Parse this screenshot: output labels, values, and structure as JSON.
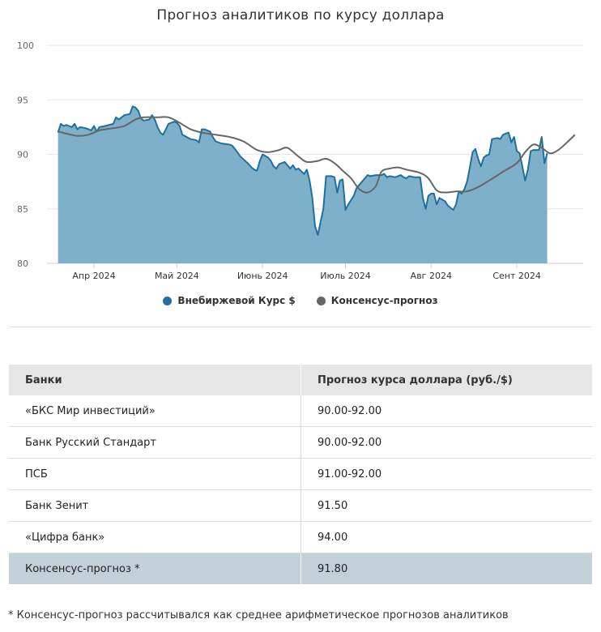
{
  "title": "Прогноз аналитиков по курсу доллара",
  "chart_data": {
    "type": "area",
    "ylim": [
      80,
      100
    ],
    "y_ticks": [
      "100",
      "95",
      "90",
      "85",
      "80"
    ],
    "x_range": [
      "2024-03-15",
      "2024-09-25"
    ],
    "x_ticks": [
      {
        "date": "2024-04-01",
        "label": "Апр 2024"
      },
      {
        "date": "2024-05-01",
        "label": "Май 2024"
      },
      {
        "date": "2024-06-01",
        "label": "Июнь 2024"
      },
      {
        "date": "2024-07-01",
        "label": "Июль 2024"
      },
      {
        "date": "2024-08-01",
        "label": "Авг 2024"
      },
      {
        "date": "2024-09-01",
        "label": "Сент 2024"
      }
    ],
    "grid": true,
    "legend_position": "bottom",
    "series": [
      {
        "name": "Внебиржевой Курс $",
        "color": "#1f6f9f",
        "fill": "#7fb0c9",
        "points": [
          [
            "2024-03-19",
            92.0
          ],
          [
            "2024-03-20",
            92.8
          ],
          [
            "2024-03-21",
            92.6
          ],
          [
            "2024-03-22",
            92.7
          ],
          [
            "2024-03-24",
            92.5
          ],
          [
            "2024-03-25",
            92.8
          ],
          [
            "2024-03-26",
            92.3
          ],
          [
            "2024-03-27",
            92.5
          ],
          [
            "2024-03-29",
            92.4
          ],
          [
            "2024-03-31",
            92.2
          ],
          [
            "2024-04-01",
            92.6
          ],
          [
            "2024-04-02",
            92.1
          ],
          [
            "2024-04-03",
            92.5
          ],
          [
            "2024-04-05",
            92.6
          ],
          [
            "2024-04-08",
            92.8
          ],
          [
            "2024-04-09",
            93.4
          ],
          [
            "2024-04-10",
            93.2
          ],
          [
            "2024-04-12",
            93.6
          ],
          [
            "2024-04-14",
            93.7
          ],
          [
            "2024-04-15",
            94.4
          ],
          [
            "2024-04-16",
            94.3
          ],
          [
            "2024-04-17",
            94.0
          ],
          [
            "2024-04-18",
            93.3
          ],
          [
            "2024-04-19",
            93.1
          ],
          [
            "2024-04-21",
            93.2
          ],
          [
            "2024-04-22",
            93.6
          ],
          [
            "2024-04-23",
            93.2
          ],
          [
            "2024-04-24",
            92.5
          ],
          [
            "2024-04-25",
            92.0
          ],
          [
            "2024-04-26",
            91.8
          ],
          [
            "2024-04-28",
            92.8
          ],
          [
            "2024-04-29",
            92.9
          ],
          [
            "2024-04-30",
            93.0
          ],
          [
            "2024-05-01",
            92.9
          ],
          [
            "2024-05-02",
            92.6
          ],
          [
            "2024-05-03",
            91.8
          ],
          [
            "2024-05-06",
            91.4
          ],
          [
            "2024-05-08",
            91.3
          ],
          [
            "2024-05-09",
            91.1
          ],
          [
            "2024-05-10",
            92.3
          ],
          [
            "2024-05-11",
            92.3
          ],
          [
            "2024-05-13",
            92.1
          ],
          [
            "2024-05-14",
            91.6
          ],
          [
            "2024-05-15",
            91.2
          ],
          [
            "2024-05-17",
            91.0
          ],
          [
            "2024-05-20",
            90.9
          ],
          [
            "2024-05-21",
            90.8
          ],
          [
            "2024-05-22",
            90.5
          ],
          [
            "2024-05-24",
            89.8
          ],
          [
            "2024-05-27",
            89.1
          ],
          [
            "2024-05-28",
            88.8
          ],
          [
            "2024-05-29",
            88.6
          ],
          [
            "2024-05-30",
            88.5
          ],
          [
            "2024-05-31",
            89.4
          ],
          [
            "2024-06-01",
            90.0
          ],
          [
            "2024-06-03",
            89.7
          ],
          [
            "2024-06-04",
            89.4
          ],
          [
            "2024-06-05",
            88.9
          ],
          [
            "2024-06-06",
            88.7
          ],
          [
            "2024-06-07",
            89.1
          ],
          [
            "2024-06-09",
            89.3
          ],
          [
            "2024-06-10",
            89.0
          ],
          [
            "2024-06-11",
            88.7
          ],
          [
            "2024-06-12",
            89.0
          ],
          [
            "2024-06-13",
            88.6
          ],
          [
            "2024-06-14",
            88.7
          ],
          [
            "2024-06-16",
            88.2
          ],
          [
            "2024-06-17",
            88.6
          ],
          [
            "2024-06-18",
            87.6
          ],
          [
            "2024-06-19",
            86.0
          ],
          [
            "2024-06-20",
            83.4
          ],
          [
            "2024-06-21",
            82.6
          ],
          [
            "2024-06-23",
            85.0
          ],
          [
            "2024-06-24",
            88.0
          ],
          [
            "2024-06-26",
            88.0
          ],
          [
            "2024-06-27",
            87.9
          ],
          [
            "2024-06-28",
            86.5
          ],
          [
            "2024-06-29",
            87.6
          ],
          [
            "2024-06-30",
            87.7
          ],
          [
            "2024-07-01",
            84.9
          ],
          [
            "2024-07-02",
            85.4
          ],
          [
            "2024-07-04",
            86.2
          ],
          [
            "2024-07-05",
            86.9
          ],
          [
            "2024-07-07",
            87.5
          ],
          [
            "2024-07-08",
            87.8
          ],
          [
            "2024-07-09",
            88.1
          ],
          [
            "2024-07-10",
            88.0
          ],
          [
            "2024-07-12",
            88.1
          ],
          [
            "2024-07-14",
            88.1
          ],
          [
            "2024-07-15",
            88.2
          ],
          [
            "2024-07-16",
            87.9
          ],
          [
            "2024-07-17",
            88.0
          ],
          [
            "2024-07-19",
            87.9
          ],
          [
            "2024-07-21",
            88.1
          ],
          [
            "2024-07-22",
            87.9
          ],
          [
            "2024-07-23",
            87.8
          ],
          [
            "2024-07-24",
            88.0
          ],
          [
            "2024-07-26",
            87.9
          ],
          [
            "2024-07-28",
            87.9
          ],
          [
            "2024-07-29",
            86.0
          ],
          [
            "2024-07-30",
            85.0
          ],
          [
            "2024-07-31",
            86.2
          ],
          [
            "2024-08-01",
            86.4
          ],
          [
            "2024-08-02",
            86.4
          ],
          [
            "2024-08-03",
            85.4
          ],
          [
            "2024-08-04",
            86.0
          ],
          [
            "2024-08-06",
            85.7
          ],
          [
            "2024-08-07",
            85.3
          ],
          [
            "2024-08-08",
            85.1
          ],
          [
            "2024-08-09",
            84.9
          ],
          [
            "2024-08-10",
            85.4
          ],
          [
            "2024-08-11",
            86.6
          ],
          [
            "2024-08-12",
            86.4
          ],
          [
            "2024-08-13",
            86.8
          ],
          [
            "2024-08-14",
            87.5
          ],
          [
            "2024-08-15",
            88.8
          ],
          [
            "2024-08-16",
            90.2
          ],
          [
            "2024-08-17",
            90.5
          ],
          [
            "2024-08-18",
            89.6
          ],
          [
            "2024-08-19",
            88.9
          ],
          [
            "2024-08-20",
            89.7
          ],
          [
            "2024-08-21",
            89.9
          ],
          [
            "2024-08-22",
            90.0
          ],
          [
            "2024-08-23",
            91.4
          ],
          [
            "2024-08-25",
            91.5
          ],
          [
            "2024-08-26",
            91.4
          ],
          [
            "2024-08-27",
            91.8
          ],
          [
            "2024-08-29",
            92.0
          ],
          [
            "2024-08-30",
            91.1
          ],
          [
            "2024-08-31",
            91.6
          ],
          [
            "2024-09-01",
            90.3
          ],
          [
            "2024-09-02",
            90.1
          ],
          [
            "2024-09-03",
            88.9
          ],
          [
            "2024-09-04",
            87.6
          ],
          [
            "2024-09-05",
            88.6
          ],
          [
            "2024-09-06",
            90.3
          ],
          [
            "2024-09-07",
            90.4
          ],
          [
            "2024-09-09",
            90.4
          ],
          [
            "2024-09-10",
            91.6
          ],
          [
            "2024-09-11",
            89.2
          ],
          [
            "2024-09-12",
            90.1
          ]
        ]
      },
      {
        "name": "Консенсус-прогноз",
        "color": "#666666",
        "points": [
          [
            "2024-03-19",
            92.1
          ],
          [
            "2024-03-22",
            91.9
          ],
          [
            "2024-03-26",
            91.7
          ],
          [
            "2024-03-30",
            91.8
          ],
          [
            "2024-04-03",
            92.2
          ],
          [
            "2024-04-08",
            92.4
          ],
          [
            "2024-04-12",
            92.6
          ],
          [
            "2024-04-16",
            93.2
          ],
          [
            "2024-04-19",
            93.4
          ],
          [
            "2024-04-24",
            93.4
          ],
          [
            "2024-04-28",
            93.4
          ],
          [
            "2024-05-02",
            92.9
          ],
          [
            "2024-05-06",
            92.3
          ],
          [
            "2024-05-10",
            92.0
          ],
          [
            "2024-05-15",
            91.8
          ],
          [
            "2024-05-20",
            91.6
          ],
          [
            "2024-05-25",
            91.2
          ],
          [
            "2024-05-30",
            90.4
          ],
          [
            "2024-06-03",
            90.2
          ],
          [
            "2024-06-07",
            90.4
          ],
          [
            "2024-06-10",
            90.6
          ],
          [
            "2024-06-14",
            89.8
          ],
          [
            "2024-06-17",
            89.3
          ],
          [
            "2024-06-21",
            89.4
          ],
          [
            "2024-06-24",
            89.6
          ],
          [
            "2024-06-27",
            89.2
          ],
          [
            "2024-06-30",
            88.5
          ],
          [
            "2024-07-03",
            87.8
          ],
          [
            "2024-07-06",
            86.8
          ],
          [
            "2024-07-09",
            86.5
          ],
          [
            "2024-07-12",
            87.1
          ],
          [
            "2024-07-14",
            88.4
          ],
          [
            "2024-07-17",
            88.7
          ],
          [
            "2024-07-20",
            88.8
          ],
          [
            "2024-07-23",
            88.6
          ],
          [
            "2024-07-28",
            88.3
          ],
          [
            "2024-07-31",
            87.8
          ],
          [
            "2024-08-03",
            86.7
          ],
          [
            "2024-08-06",
            86.5
          ],
          [
            "2024-08-10",
            86.6
          ],
          [
            "2024-08-14",
            86.6
          ],
          [
            "2024-08-18",
            87.0
          ],
          [
            "2024-08-22",
            87.6
          ],
          [
            "2024-08-27",
            88.4
          ],
          [
            "2024-09-01",
            89.2
          ],
          [
            "2024-09-04",
            90.2
          ],
          [
            "2024-09-07",
            90.9
          ],
          [
            "2024-09-10",
            90.6
          ],
          [
            "2024-09-13",
            90.1
          ],
          [
            "2024-09-16",
            90.4
          ],
          [
            "2024-09-20",
            91.3
          ],
          [
            "2024-09-22",
            91.8
          ]
        ]
      }
    ]
  },
  "table": {
    "headers": [
      "Банки",
      "Прогноз курса доллара (руб./$)"
    ],
    "rows": [
      [
        "«БКС Мир инвестиций»",
        "90.00-92.00"
      ],
      [
        "Банк Русский Стандарт",
        "90.00-92.00"
      ],
      [
        "ПСБ",
        "91.00-92.00"
      ],
      [
        "Банк Зенит",
        "91.50"
      ],
      [
        "«Цифра банк»",
        "94.00"
      ],
      [
        "Консенсус-прогноз *",
        "91.80"
      ]
    ]
  },
  "footnote": "* Консенсус-прогноз рассчитывался как среднее арифметическое прогнозов аналитиков"
}
